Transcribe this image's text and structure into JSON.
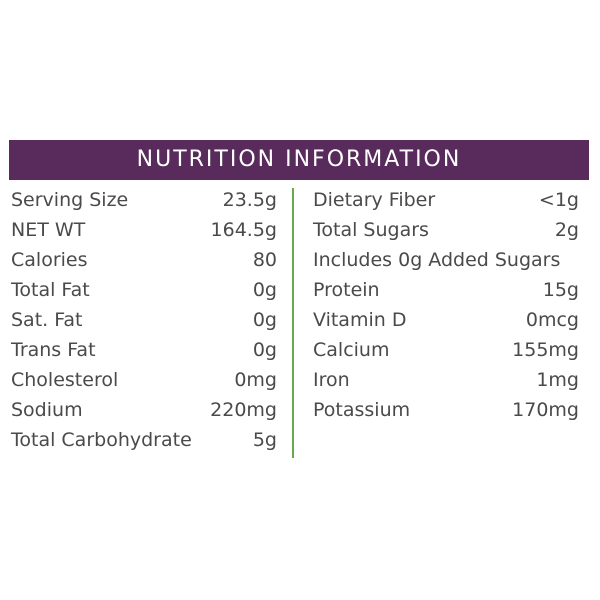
{
  "header": {
    "title": "NUTRITION INFORMATION"
  },
  "colors": {
    "header_bg": "#582b5c",
    "divider": "#6aa84f",
    "text": "#4a4a4a"
  },
  "left": [
    {
      "label": "Serving Size",
      "value": "23.5g"
    },
    {
      "label": "NET WT",
      "value": "164.5g"
    },
    {
      "label": "Calories",
      "value": "80"
    },
    {
      "label": "Total Fat",
      "value": "0g"
    },
    {
      "label": "Sat. Fat",
      "value": "0g"
    },
    {
      "label": "Trans Fat",
      "value": "0g"
    },
    {
      "label": "Cholesterol",
      "value": "0mg"
    },
    {
      "label": "Sodium",
      "value": "220mg"
    },
    {
      "label": "Total Carbohydrate",
      "value": "5g"
    }
  ],
  "right": [
    {
      "label": "Dietary Fiber",
      "value": "<1g"
    },
    {
      "label": "Total Sugars",
      "value": "2g"
    },
    {
      "label": "Includes 0g Added Sugars"
    },
    {
      "label": "Protein",
      "value": "15g"
    },
    {
      "label": "Vitamin D",
      "value": "0mcg"
    },
    {
      "label": "Calcium",
      "value": "155mg"
    },
    {
      "label": "Iron",
      "value": "1mg"
    },
    {
      "label": "Potassium",
      "value": "170mg"
    }
  ]
}
